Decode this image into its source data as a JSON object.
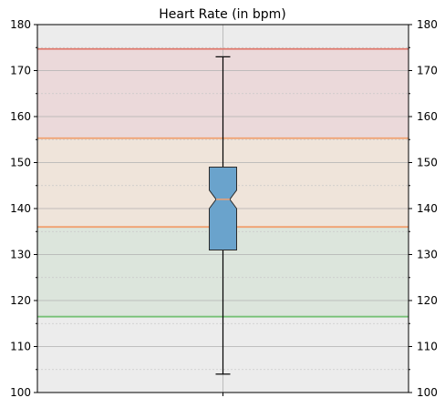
{
  "chart_data": {
    "type": "box",
    "title": "Heart Rate (in bpm)",
    "xlabel": "",
    "ylabel": "",
    "ylim": [
      100,
      180
    ],
    "yticks": [
      "100",
      "110",
      "120",
      "130",
      "140",
      "150",
      "160",
      "170",
      "180"
    ],
    "grid": true,
    "box": {
      "whisker_low": 104,
      "q1": 131,
      "median": 142,
      "q3": 149,
      "whisker_high": 173,
      "notch_low": 140,
      "notch_high": 144
    },
    "zones": [
      {
        "from": 100,
        "to": 116.5,
        "fill": "#ececec",
        "line": null
      },
      {
        "from": 116.5,
        "to": 136,
        "fill": "#dce5dc",
        "line": "#77c177"
      },
      {
        "from": 136,
        "to": 155.3,
        "fill": "#efe4da",
        "line": "#f0a070"
      },
      {
        "from": 155.3,
        "to": 174.7,
        "fill": "#ebd9da",
        "line": "#f0a070"
      },
      {
        "from": 174.7,
        "to": 180,
        "fill": "#ececec",
        "line": "#e07a6e"
      }
    ],
    "colors": {
      "box": "#6aa3cc",
      "box_edge": "#2b2b2b",
      "grid": "#b0b0b0",
      "minor_grid": "#c8c8c8",
      "background": "#ececec"
    }
  }
}
